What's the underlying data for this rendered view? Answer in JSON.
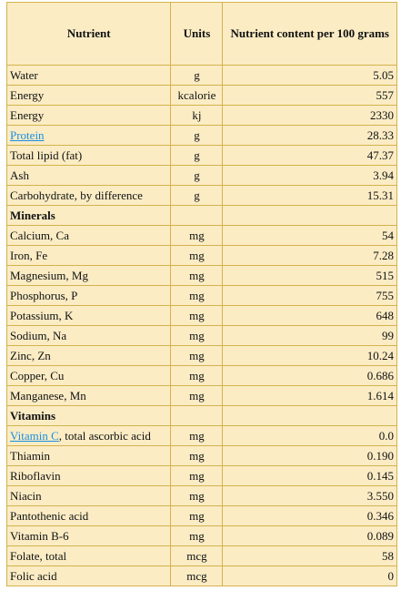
{
  "table": {
    "header": [
      "Nutrient",
      "Units",
      "Nutrient content per 100 grams"
    ],
    "rows": [
      {
        "name": "Water",
        "unit": "g",
        "value": "5.05"
      },
      {
        "name": "Energy",
        "unit": "kcalorie",
        "value": "557"
      },
      {
        "name": "Energy",
        "unit": "kj",
        "value": "2330"
      },
      {
        "link": "Protein",
        "unit": "g",
        "value": "28.33"
      },
      {
        "name": "Total lipid (fat)",
        "unit": "g",
        "value": "47.37"
      },
      {
        "name": "Ash",
        "unit": "g",
        "value": "3.94"
      },
      {
        "name": "Carbohydrate, by difference",
        "unit": "g",
        "value": "15.31"
      },
      {
        "section": "Minerals"
      },
      {
        "name": "Calcium, Ca",
        "unit": "mg",
        "value": "54"
      },
      {
        "name": "Iron, Fe",
        "unit": "mg",
        "value": "7.28"
      },
      {
        "name": "Magnesium, Mg",
        "unit": "mg",
        "value": "515"
      },
      {
        "name": "Phosphorus, P",
        "unit": "mg",
        "value": "755"
      },
      {
        "name": "Potassium, K",
        "unit": "mg",
        "value": "648"
      },
      {
        "name": "Sodium, Na",
        "unit": "mg",
        "value": "99"
      },
      {
        "name": "Zinc, Zn",
        "unit": "mg",
        "value": "10.24"
      },
      {
        "name": "Copper, Cu",
        "unit": "mg",
        "value": "0.686"
      },
      {
        "name": "Manganese, Mn",
        "unit": "mg",
        "value": "1.614"
      },
      {
        "section": "Vitamins"
      },
      {
        "link": "Vitamin C",
        "name": ", total ascorbic acid",
        "unit": "mg",
        "value": "0.0"
      },
      {
        "name": "Thiamin",
        "unit": "mg",
        "value": "0.190"
      },
      {
        "name": "Riboflavin",
        "unit": "mg",
        "value": "0.145"
      },
      {
        "name": "Niacin",
        "unit": "mg",
        "value": "3.550"
      },
      {
        "name": "Pantothenic acid",
        "unit": "mg",
        "value": "0.346"
      },
      {
        "name": "Vitamin B-6",
        "unit": "mg",
        "value": "0.089"
      },
      {
        "name": "Folate, total",
        "unit": "mcg",
        "value": "58"
      },
      {
        "name": "Folic acid",
        "unit": "mcg",
        "value": "0"
      }
    ]
  }
}
